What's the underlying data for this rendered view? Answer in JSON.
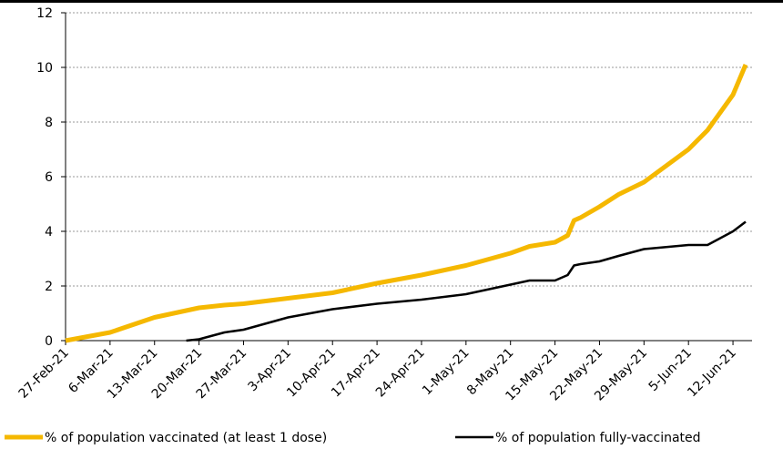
{
  "chart_data": {
    "type": "line",
    "x": [
      "2021-02-27",
      "2021-03-06",
      "2021-03-13",
      "2021-03-18",
      "2021-03-20",
      "2021-03-24",
      "2021-03-27",
      "2021-04-03",
      "2021-04-10",
      "2021-04-17",
      "2021-04-24",
      "2021-05-01",
      "2021-05-08",
      "2021-05-11",
      "2021-05-15",
      "2021-05-17",
      "2021-05-18",
      "2021-05-19",
      "2021-05-22",
      "2021-05-25",
      "2021-05-29",
      "2021-06-05",
      "2021-06-08",
      "2021-06-12",
      "2021-06-14"
    ],
    "series": [
      {
        "name": "% of population vaccinated (at least 1 dose)",
        "color": "#f5b800",
        "values": [
          0,
          0.3,
          0.85,
          1.1,
          1.2,
          1.3,
          1.35,
          1.55,
          1.75,
          2.1,
          2.4,
          2.75,
          3.2,
          3.45,
          3.6,
          3.85,
          4.4,
          4.5,
          4.9,
          5.35,
          5.8,
          7.0,
          7.7,
          9.0,
          10.1
        ]
      },
      {
        "name": "% of population fully-vaccinated",
        "color": "#000000",
        "values": [
          null,
          null,
          null,
          0,
          0.05,
          0.3,
          0.4,
          0.85,
          1.15,
          1.35,
          1.5,
          1.7,
          2.05,
          2.2,
          2.2,
          2.4,
          2.75,
          2.8,
          2.9,
          3.1,
          3.35,
          3.5,
          3.5,
          4.0,
          4.35
        ]
      }
    ],
    "xlim": [
      "2021-02-27",
      "2021-06-15"
    ],
    "xticks": [
      {
        "value": "2021-02-27",
        "label": "27-Feb-21"
      },
      {
        "value": "2021-03-06",
        "label": "6-Mar-21"
      },
      {
        "value": "2021-03-13",
        "label": "13-Mar-21"
      },
      {
        "value": "2021-03-20",
        "label": "20-Mar-21"
      },
      {
        "value": "2021-03-27",
        "label": "27-Mar-21"
      },
      {
        "value": "2021-04-03",
        "label": "3-Apr-21"
      },
      {
        "value": "2021-04-10",
        "label": "10-Apr-21"
      },
      {
        "value": "2021-04-17",
        "label": "17-Apr-21"
      },
      {
        "value": "2021-04-24",
        "label": "24-Apr-21"
      },
      {
        "value": "2021-05-01",
        "label": "1-May-21"
      },
      {
        "value": "2021-05-08",
        "label": "8-May-21"
      },
      {
        "value": "2021-05-15",
        "label": "15-May-21"
      },
      {
        "value": "2021-05-22",
        "label": "22-May-21"
      },
      {
        "value": "2021-05-29",
        "label": "29-May-21"
      },
      {
        "value": "2021-06-05",
        "label": "5-Jun-21"
      },
      {
        "value": "2021-06-12",
        "label": "12-Jun-21"
      }
    ],
    "ylim": [
      0,
      12
    ],
    "yticks": [
      0,
      2,
      4,
      6,
      8,
      10,
      12
    ],
    "grid": true,
    "legend": "bottom"
  }
}
